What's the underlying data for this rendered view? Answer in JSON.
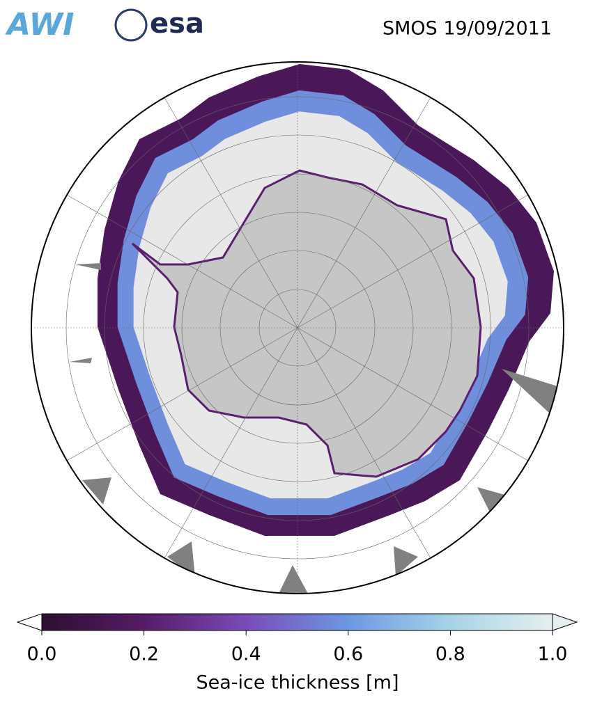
{
  "header": {
    "logo_left": "AWI",
    "logo_right": "esa",
    "title": "SMOS 19/09/2011"
  },
  "colorbar": {
    "label": "Sea-ice thickness [m]",
    "lim": [
      0,
      1
    ],
    "extend": "both",
    "ticks": [
      {
        "value": 0,
        "label": "0.0"
      },
      0.2,
      0.4,
      0.6,
      0.8,
      {
        "value": 1,
        "label": "1.0"
      }
    ],
    "colors": [
      "#2c0f30",
      "#561c66",
      "#7a4bb8",
      "#6c98e2",
      "#a6d4e6",
      "#e6efef"
    ]
  }
}
